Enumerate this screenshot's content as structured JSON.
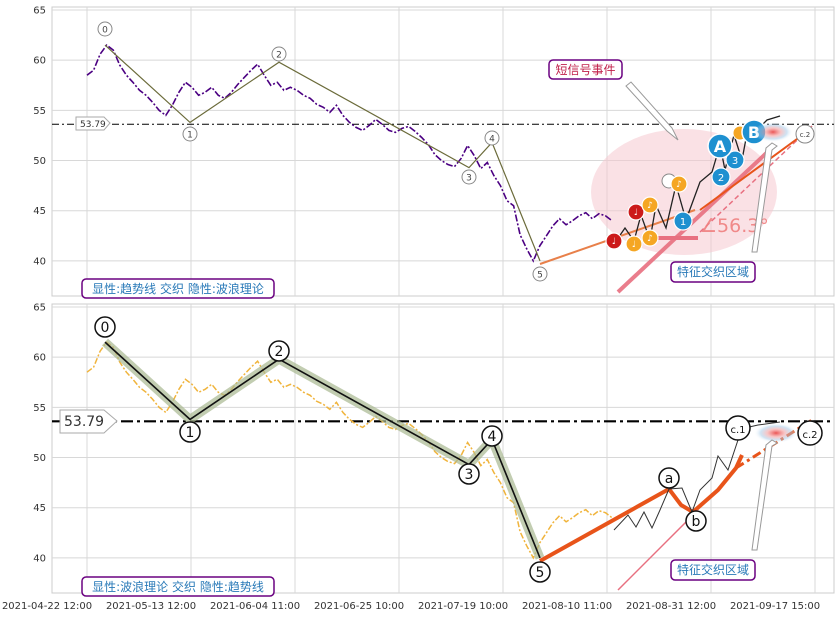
{
  "chart_data": [
    {
      "type": "line",
      "title": "",
      "ylim": [
        36.5,
        65.3
      ],
      "yticks": [
        40,
        45,
        50,
        55,
        60,
        65
      ],
      "grid": true,
      "hline": {
        "value": 53.79,
        "label": "53.79"
      },
      "legend_text": "显性:趋势线 交织 隐性:波浪理论",
      "annotations": {
        "short_signal": "短信号事件",
        "feature_zone": "特征交织区域",
        "angle": "∠56.3°"
      },
      "wave_labels": [
        "0",
        "1",
        "2",
        "3",
        "4",
        "5"
      ],
      "signal_labels": [
        "A",
        "B",
        "1",
        "2",
        "3",
        "c.2",
        "a",
        "b"
      ],
      "series": [
        {
          "values": [
            58.5,
            59.0,
            60.6,
            61.5,
            61.0,
            59.5,
            58.5,
            57.8,
            57.0,
            56.5,
            55.8,
            55.0,
            54.5,
            55.5,
            56.8,
            57.8,
            57.3,
            56.5,
            56.8,
            57.3,
            56.5,
            56.2,
            56.8,
            57.6,
            58.3,
            59.0,
            59.6,
            58.5,
            57.5,
            57.8,
            57.0,
            57.3,
            57.0,
            56.5,
            56.2,
            55.6,
            55.3,
            54.8,
            55.5,
            54.5,
            53.8,
            53.3,
            53.0,
            53.5,
            54.1,
            53.6,
            53.0,
            52.8,
            53.2,
            53.4,
            52.9,
            52.3,
            51.6,
            50.6,
            50.0,
            49.6,
            49.4,
            50.2,
            51.5,
            50.5,
            49.2,
            49.8,
            48.5,
            47.5,
            46.0,
            45.5,
            42.6,
            41.2,
            40.0,
            41.5,
            42.5,
            43.5,
            44.2,
            43.6,
            44.0,
            44.5,
            44.8,
            44.2,
            44.7,
            44.5,
            44.0
          ]
        }
      ]
    },
    {
      "type": "line",
      "title": "",
      "ylim": [
        36.5,
        65.3
      ],
      "yticks": [
        40,
        45,
        50,
        55,
        60,
        65
      ],
      "grid": true,
      "hline": {
        "value": 53.79,
        "label": "53.79"
      },
      "legend_text": "显性:波浪理论 交织 隐性:趋势线",
      "annotations": {
        "feature_zone": "特征交织区域"
      },
      "wave_labels": [
        "0",
        "1",
        "2",
        "3",
        "4",
        "5",
        "a",
        "b",
        "c.1",
        "c.2"
      ],
      "x_ticks": [
        "2021-04-22 12:00",
        "2021-05-13 12:00",
        "2021-06-04 11:00",
        "2021-06-25 10:00",
        "2021-07-19 10:00",
        "2021-08-10 11:00",
        "2021-08-31 12:00",
        "2021-09-17 15:00"
      ],
      "wave_points": [
        {
          "label": "0",
          "y": 61.5
        },
        {
          "label": "1",
          "y": 53.8
        },
        {
          "label": "2",
          "y": 59.8
        },
        {
          "label": "3",
          "y": 49.3
        },
        {
          "label": "4",
          "y": 51.8
        },
        {
          "label": "5",
          "y": 40.0
        },
        {
          "label": "a",
          "y": 47.0
        },
        {
          "label": "b",
          "y": 45.0
        },
        {
          "label": "c.1",
          "y": 53.0
        },
        {
          "label": "c.2",
          "y": 53.0
        }
      ]
    }
  ],
  "colors": {
    "price_line_top": "#4b0082",
    "price_line_bottom": "#f0b43c",
    "wave": "#000000",
    "trend_orange": "#e8541a",
    "pink": "#e88aa0",
    "box_border": "#6a0080",
    "box_text": "#2a7ab8",
    "blue_circle": "#1e90d0",
    "red_circle": "#cc1a1a",
    "orange_circle": "#f5a623"
  }
}
